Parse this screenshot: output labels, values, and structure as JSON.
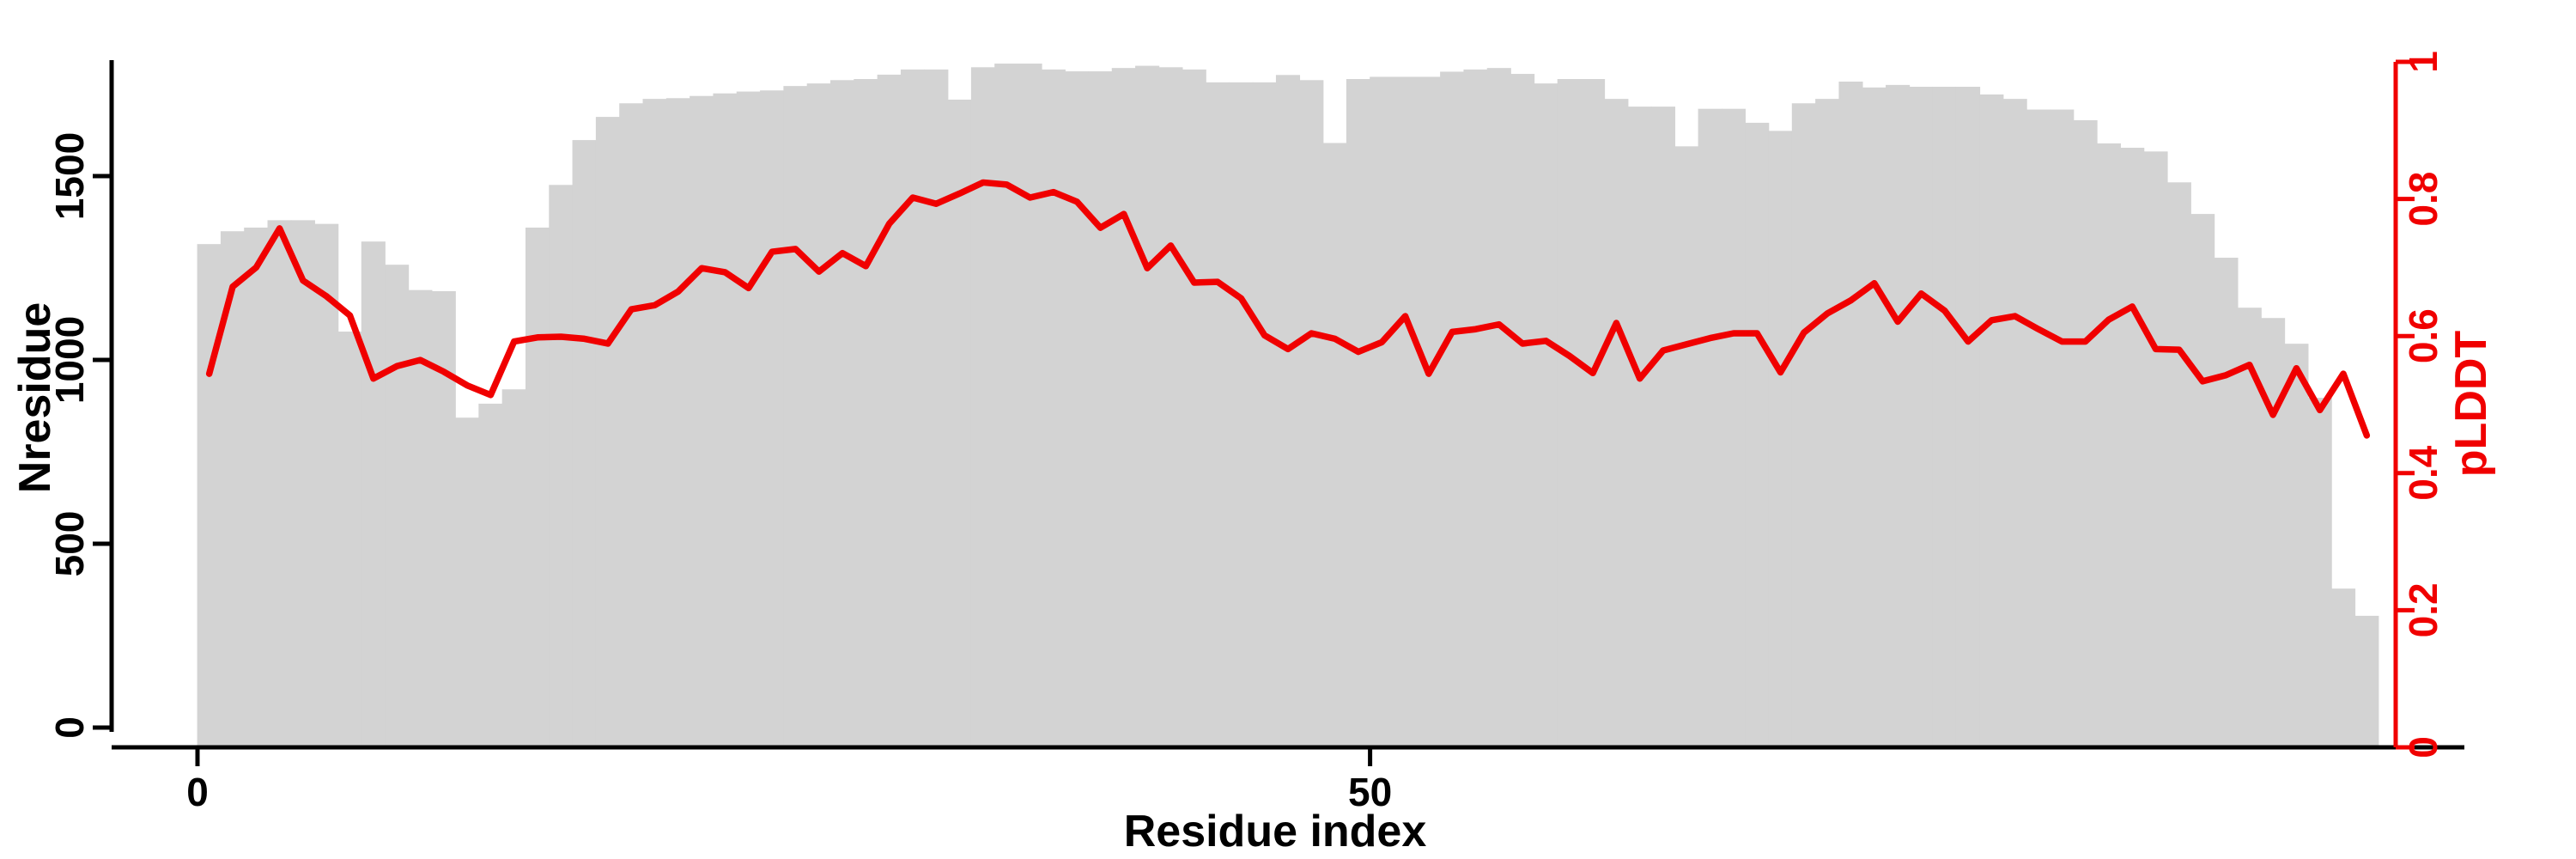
{
  "chart_data": {
    "type": "bar",
    "subtype": "bar-with-line-overlay",
    "title": "",
    "xlabel": "Residue index",
    "ylabel_left": "Nresidue",
    "ylabel_right": "pLDDT",
    "grid": false,
    "legend_position": "none",
    "x_tick_values": [
      0,
      50
    ],
    "x_tick_labels": [
      "0",
      "50"
    ],
    "left_tick_values": [
      0,
      500,
      1000,
      1500
    ],
    "left_tick_labels": [
      "0",
      "500",
      "1000",
      "1500"
    ],
    "right_tick_values": [
      0,
      0.2,
      0.4,
      0.6,
      0.8,
      1
    ],
    "right_tick_labels": [
      "0",
      "0.2",
      "0.4",
      "0.6",
      "0.8",
      "1"
    ],
    "xlim": [
      0,
      93
    ],
    "ylim_left": [
      0,
      1815
    ],
    "ylim_right": [
      0,
      1
    ],
    "n_residues": 93,
    "colors": {
      "bar_fill": "#d3d3d3",
      "line": "#f00000",
      "left_axis": "#000000",
      "right_axis": "#f00000",
      "background": "#ffffff"
    },
    "series": [
      {
        "name": "Nresidue",
        "type": "bar",
        "axis": "left",
        "values": [
          1315,
          1350,
          1360,
          1380,
          1380,
          1370,
          1077,
          1322,
          1259,
          1190,
          1187,
          843,
          881,
          920,
          1360,
          1476,
          1598,
          1661,
          1698,
          1710,
          1712,
          1718,
          1725,
          1730,
          1733,
          1745,
          1752,
          1761,
          1764,
          1776,
          1790,
          1790,
          1708,
          1796,
          1806,
          1806,
          1790,
          1785,
          1785,
          1794,
          1800,
          1796,
          1790,
          1755,
          1755,
          1755,
          1775,
          1761,
          1590,
          1764,
          1770,
          1770,
          1770,
          1784,
          1790,
          1794,
          1778,
          1752,
          1764,
          1764,
          1710,
          1689,
          1689,
          1581,
          1683,
          1683,
          1645,
          1623,
          1698,
          1710,
          1757,
          1741,
          1748,
          1743,
          1743,
          1743,
          1722,
          1710,
          1681,
          1681,
          1652,
          1589,
          1577,
          1567,
          1483,
          1397,
          1278,
          1142,
          1114,
          1044,
          897,
          378,
          304
        ]
      },
      {
        "name": "pLDDT",
        "type": "line",
        "axis": "right",
        "values": [
          0.545,
          0.672,
          0.7,
          0.757,
          0.681,
          0.658,
          0.63,
          0.538,
          0.556,
          0.565,
          0.548,
          0.528,
          0.514,
          0.592,
          0.598,
          0.599,
          0.596,
          0.589,
          0.639,
          0.645,
          0.665,
          0.699,
          0.693,
          0.67,
          0.723,
          0.727,
          0.694,
          0.721,
          0.702,
          0.764,
          0.802,
          0.793,
          0.808,
          0.824,
          0.821,
          0.802,
          0.81,
          0.796,
          0.758,
          0.778,
          0.699,
          0.732,
          0.678,
          0.679,
          0.655,
          0.601,
          0.581,
          0.604,
          0.596,
          0.577,
          0.591,
          0.629,
          0.545,
          0.606,
          0.61,
          0.617,
          0.589,
          0.593,
          0.571,
          0.546,
          0.619,
          0.538,
          0.579,
          0.588,
          0.597,
          0.604,
          0.604,
          0.547,
          0.605,
          0.633,
          0.652,
          0.677,
          0.621,
          0.662,
          0.637,
          0.592,
          0.623,
          0.629,
          0.61,
          0.592,
          0.592,
          0.624,
          0.643,
          0.581,
          0.58,
          0.534,
          0.543,
          0.558,
          0.485,
          0.553,
          0.492,
          0.545,
          0.455
        ]
      }
    ]
  }
}
